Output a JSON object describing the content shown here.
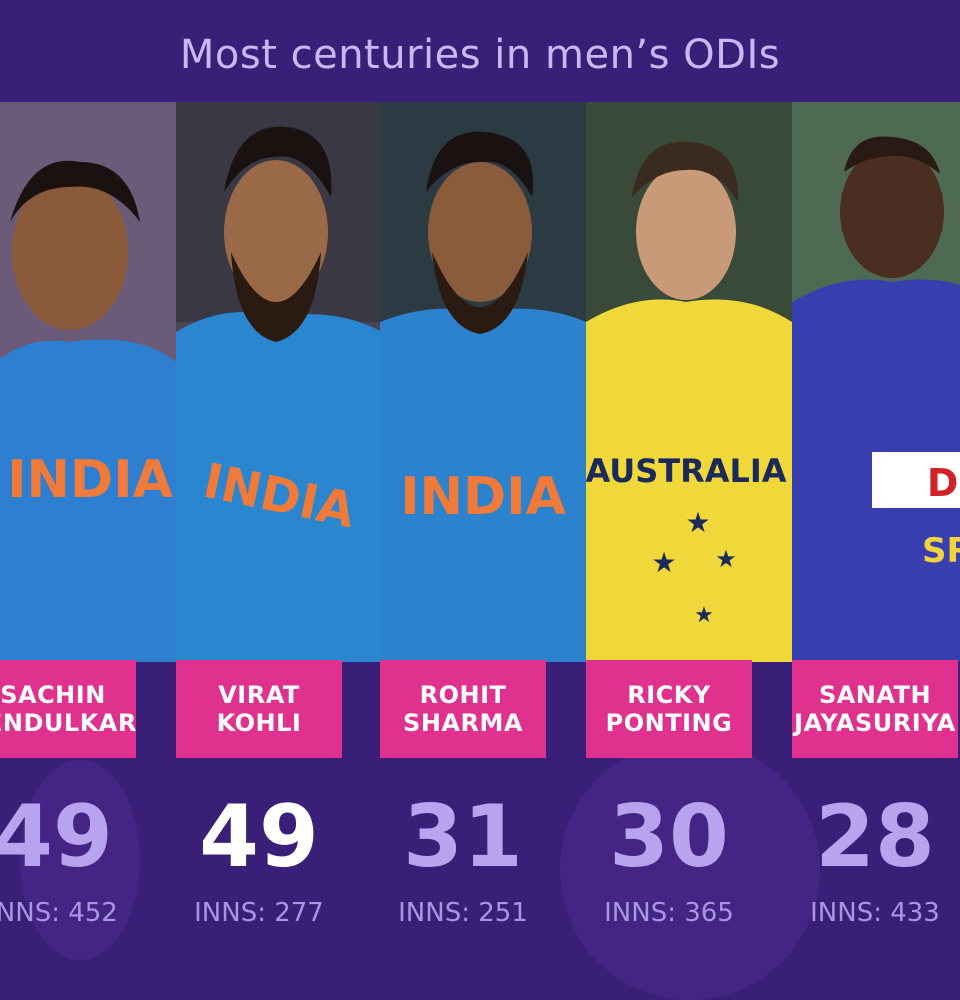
{
  "title": "Most centuries in men’s ODIs",
  "colors": {
    "background": "#3a1f78",
    "name_box": "#e0318f",
    "number": "#b9a3ee",
    "number_highlight": "#ffffff",
    "inns_text": "#a995e2",
    "title_text": "#c8b8f4"
  },
  "inns_prefix": "INNS:",
  "players": [
    {
      "first": "SACHIN",
      "last": "TENDULKAR",
      "centuries": "49",
      "inns": "INNS: 452",
      "jersey": "INDIA",
      "kit": "blue"
    },
    {
      "first": "VIRAT",
      "last": "KOHLI",
      "centuries": "49",
      "inns": "INNS: 277",
      "jersey": "INDIA",
      "kit": "blue"
    },
    {
      "first": "ROHIT",
      "last": "SHARMA",
      "centuries": "31",
      "inns": "INNS: 251",
      "jersey": "INDIA",
      "kit": "blue"
    },
    {
      "first": "RICKY",
      "last": "PONTING",
      "centuries": "30",
      "inns": "INNS: 365",
      "jersey": "AUSTRALIA",
      "kit": "yellow"
    },
    {
      "first": "SANATH",
      "last": "JAYASURIYA",
      "centuries": "28",
      "inns": "INNS: 433",
      "jersey": "SRI LA",
      "kit": "blue-sl"
    }
  ]
}
